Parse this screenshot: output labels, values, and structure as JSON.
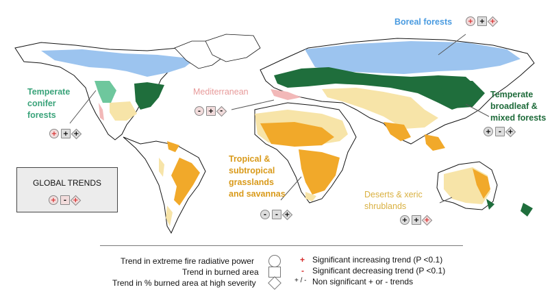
{
  "biomes": {
    "boreal": {
      "label": "Boreal forests",
      "color": "#4a9be0",
      "trends": [
        "+",
        "+",
        "+"
      ]
    },
    "temperate_conifer": {
      "label": "Temperate\nconifer\nforests",
      "color": "#3aa37a",
      "trends": [
        "+",
        "+",
        "+"
      ]
    },
    "mediterranean": {
      "label": "Mediterranean",
      "color": "#e79a9a",
      "trends": [
        "-",
        "+",
        "-"
      ]
    },
    "temperate_broadleaf": {
      "label": "Temperate\nbroadleaf &\nmixed forests",
      "color": "#1e6b3a",
      "trends": [
        "+",
        "-",
        "+"
      ]
    },
    "tropical": {
      "label": "Tropical &\nsubtropical\ngrasslands\nand savannas",
      "color": "#d99a1a",
      "trends": [
        "-",
        "-",
        "+"
      ]
    },
    "deserts": {
      "label": "Deserts & xeric\nshrublands",
      "color": "#d9b040",
      "trends": [
        "+",
        "+",
        "+"
      ]
    }
  },
  "global": {
    "title": "GLOBAL TRENDS",
    "trends": [
      "+",
      "-",
      "+"
    ]
  },
  "legend": {
    "shapes": [
      {
        "label": "Trend in extreme fire radiative power",
        "shape": "circle"
      },
      {
        "label": "Trend in burned area",
        "shape": "square"
      },
      {
        "label": "Trend in % burned area at high severity",
        "shape": "diamond"
      }
    ],
    "signs": [
      {
        "symbol": "+",
        "label": "Significant increasing trend (P <0.1)"
      },
      {
        "symbol": "-",
        "label": "Significant decreasing trend (P <0.1)"
      },
      {
        "symbol": "+ / -",
        "label": "Non significant + or - trends"
      }
    ]
  },
  "colors": {
    "boreal": "#9cc4ef",
    "temperate_broadleaf": "#1f6e3c",
    "temperate_conifer": "#6ec79d",
    "mediterranean": "#f2b8b8",
    "tropical_savanna": "#f1a92a",
    "desert": "#f7e4a8",
    "sig_plus": "#d62a2a",
    "sig_minus": "#d62a2a"
  }
}
